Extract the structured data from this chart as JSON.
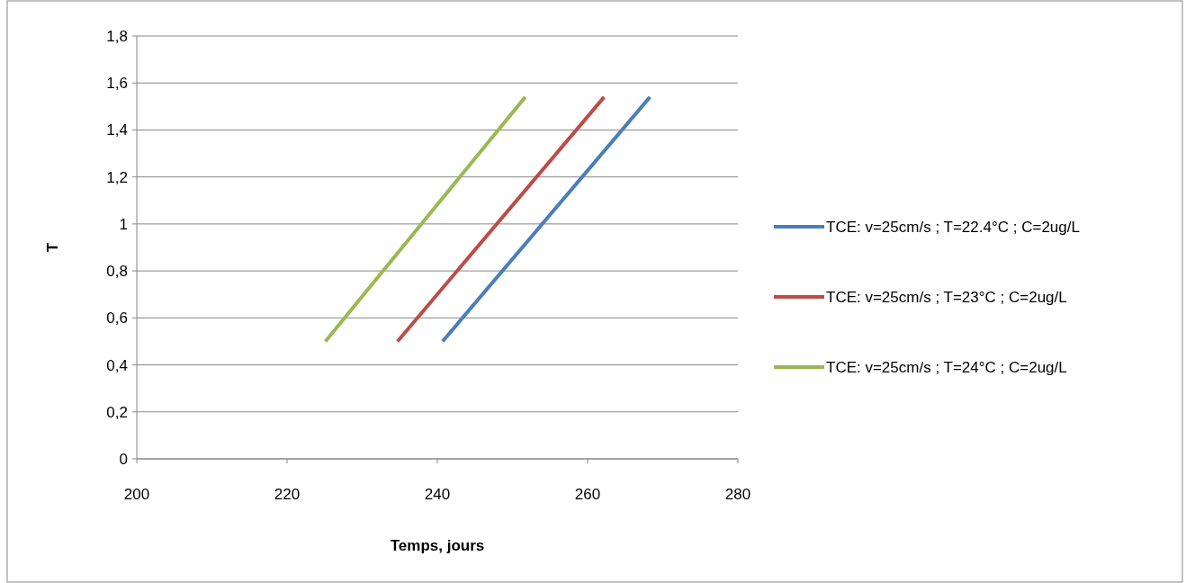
{
  "chart_data": {
    "type": "line",
    "xlabel": "Temps, jours",
    "ylabel": "T",
    "xlim": [
      200,
      280
    ],
    "xticks": [
      200,
      220,
      240,
      260,
      280
    ],
    "ylim": [
      0,
      1.8
    ],
    "yticks": [
      0,
      {
        "value": 0.2,
        "label": "0,2"
      },
      {
        "value": 0.4,
        "label": "0,4"
      },
      {
        "value": 0.6,
        "label": "0,6"
      },
      {
        "value": 0.8,
        "label": "0,8"
      },
      1,
      {
        "value": 1.2,
        "label": "1,2"
      },
      {
        "value": 1.4,
        "label": "1,4"
      },
      {
        "value": 1.6,
        "label": "1,6"
      },
      {
        "value": 1.8,
        "label": "1,8"
      }
    ],
    "grid": "y",
    "legend": "right",
    "marker": "none",
    "line_style": "solid",
    "series": [
      {
        "name": "TCE: v=25cm/s ; T=22.4°C ; C=2ug/L",
        "color": "#4a7ebb",
        "x": [
          240.7,
          268.3
        ],
        "values": [
          0.5,
          1.54
        ]
      },
      {
        "name": "TCE: v=25cm/s ; T=23°C ; C=2ug/L",
        "color": "#be4b48",
        "x": [
          234.7,
          262.2
        ],
        "values": [
          0.5,
          1.54
        ]
      },
      {
        "name": "TCE: v=25cm/s ; T=24°C ; C=2ug/L",
        "color": "#98b954",
        "x": [
          225.1,
          251.7
        ],
        "values": [
          0.5,
          1.54
        ]
      }
    ]
  }
}
